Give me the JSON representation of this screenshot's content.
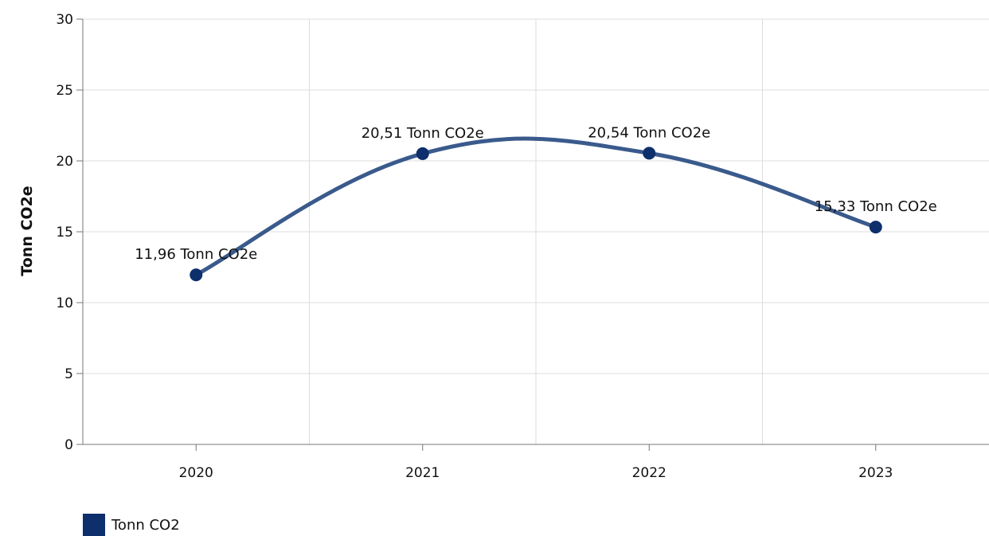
{
  "chart_data": {
    "type": "line",
    "categories": [
      "2020",
      "2021",
      "2022",
      "2023"
    ],
    "series": [
      {
        "name": "Tonn CO2",
        "values": [
          11.96,
          20.51,
          20.54,
          15.33
        ],
        "labels": [
          "11,96 Tonn CO2e",
          "20,51 Tonn CO2e",
          "20,54 Tonn CO2e",
          "15,33 Tonn CO2e"
        ]
      }
    ],
    "ylabel": "Tonn CO2e",
    "xlabel": "",
    "ylim": [
      0,
      30
    ],
    "yticks": [
      "0",
      "5",
      "10",
      "15",
      "20",
      "25",
      "30"
    ],
    "grid": true,
    "legend_position": "bottom-left",
    "colors": {
      "line": "#3a5a8c",
      "marker": "#0d2f6b",
      "legend": "#0d2f6b"
    }
  }
}
